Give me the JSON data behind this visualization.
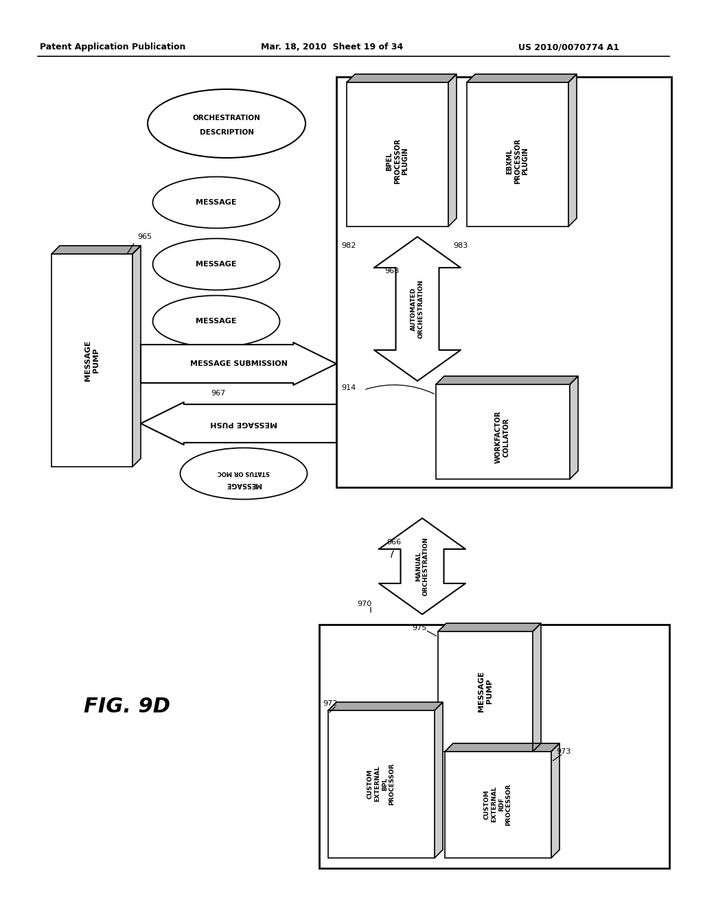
{
  "bg_color": "#ffffff",
  "header1": "Patent Application Publication",
  "header2": "Mar. 18, 2010  Sheet 19 of 34",
  "header3": "US 2010/0070774 A1",
  "fig_label": "FIG. 9D"
}
